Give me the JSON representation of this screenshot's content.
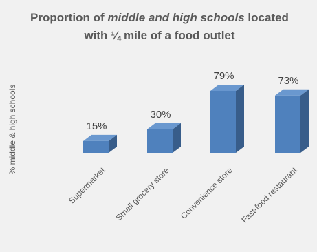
{
  "chart_data": {
    "type": "bar",
    "title_parts": [
      {
        "text": "Proportion of ",
        "italic": false
      },
      {
        "text": "middle and high schools",
        "italic": true
      },
      {
        "text": " located",
        "italic": false
      }
    ],
    "title_line2": "with  ¼ mile of a food outlet",
    "ylabel": "% middle & high schools",
    "categories": [
      "Supermarket",
      "Small grocery store",
      "Convenience store",
      "Fast-food restaurant"
    ],
    "values": [
      15,
      30,
      79,
      73
    ],
    "value_labels": [
      "15%",
      "30%",
      "79%",
      "73%"
    ],
    "ylim": [
      0,
      100
    ],
    "grid": false,
    "legend": "none",
    "colors": {
      "bar_front": "#4f81bd",
      "bar_top": "#6a98cf",
      "bar_side": "#385d8a",
      "background": "#f1f1f1"
    }
  }
}
